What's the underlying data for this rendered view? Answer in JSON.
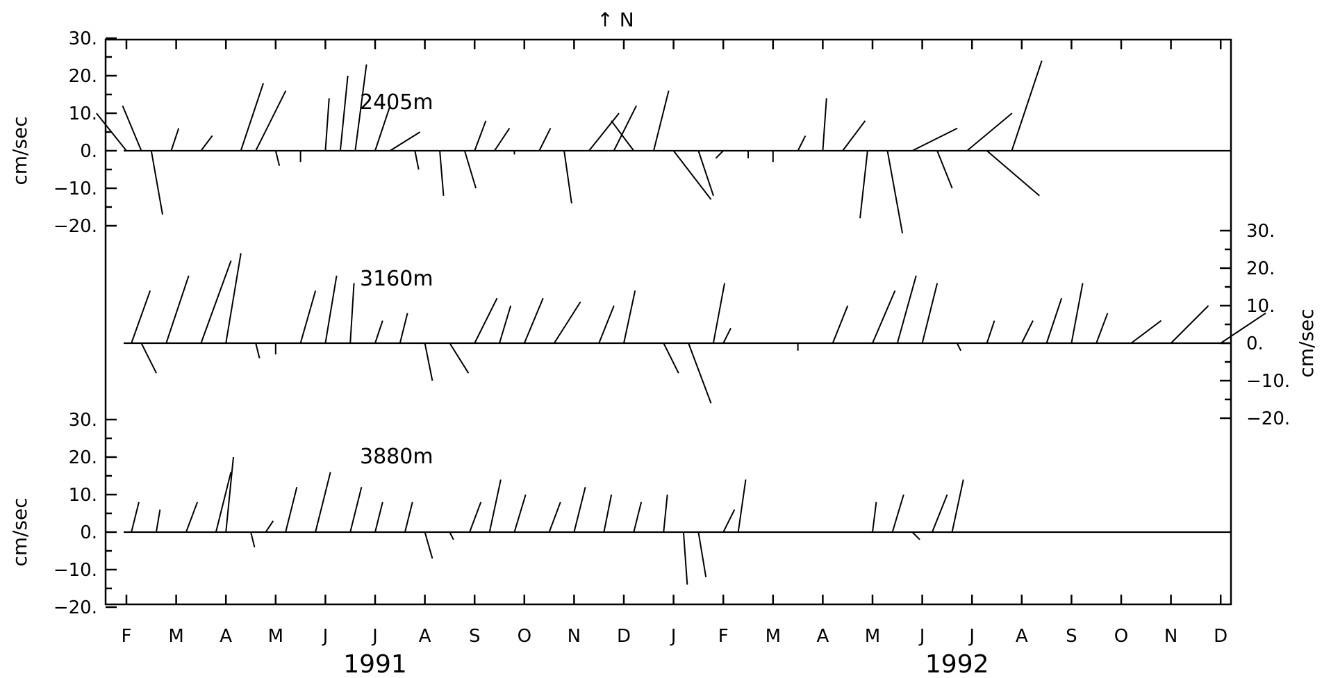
{
  "chart_data": {
    "type": "stick",
    "north_marker": "↑ N",
    "ylabel": "cm/sec",
    "month_labels": [
      "F",
      "M",
      "A",
      "M",
      "J",
      "J",
      "A",
      "S",
      "O",
      "N",
      "D",
      "J",
      "F",
      "M",
      "A",
      "M",
      "J",
      "J",
      "A",
      "S",
      "O",
      "N",
      "D"
    ],
    "year_labels": [
      "1991",
      "1992"
    ],
    "panels": [
      {
        "name": "2405m",
        "depth_label": "2405m",
        "ylim": [
          -30,
          30
        ],
        "y_tick_labels": [
          "30.",
          "20.",
          "10.",
          "0.",
          "−10.",
          "−20."
        ],
        "y_axis_side": "left",
        "coverage_months": [
          0,
          23
        ],
        "sticks": [
          {
            "month": 0.0,
            "u": -8,
            "v": 10
          },
          {
            "month": 0.3,
            "u": -5,
            "v": 12
          },
          {
            "month": 0.5,
            "u": 3,
            "v": -17
          },
          {
            "month": 0.9,
            "u": 2,
            "v": 6
          },
          {
            "month": 1.5,
            "u": 3,
            "v": 4
          },
          {
            "month": 2.3,
            "u": 6,
            "v": 18
          },
          {
            "month": 2.6,
            "u": 8,
            "v": 16
          },
          {
            "month": 3.0,
            "u": 1,
            "v": -4
          },
          {
            "month": 3.5,
            "u": 0,
            "v": -3
          },
          {
            "month": 4.0,
            "u": 1,
            "v": 14
          },
          {
            "month": 4.3,
            "u": 2,
            "v": 20
          },
          {
            "month": 4.6,
            "u": 3,
            "v": 23
          },
          {
            "month": 5.0,
            "u": 4,
            "v": 12
          },
          {
            "month": 5.3,
            "u": 8,
            "v": 5
          },
          {
            "month": 5.8,
            "u": 1,
            "v": -5
          },
          {
            "month": 6.3,
            "u": 1,
            "v": -12
          },
          {
            "month": 6.8,
            "u": 3,
            "v": -10
          },
          {
            "month": 7.0,
            "u": 3,
            "v": 8
          },
          {
            "month": 7.4,
            "u": 4,
            "v": 6
          },
          {
            "month": 7.8,
            "u": 0,
            "v": -1
          },
          {
            "month": 8.3,
            "u": 3,
            "v": 6
          },
          {
            "month": 8.8,
            "u": 2,
            "v": -14
          },
          {
            "month": 9.3,
            "u": 8,
            "v": 10
          },
          {
            "month": 9.8,
            "u": 6,
            "v": 12
          },
          {
            "month": 10.2,
            "u": -6,
            "v": 8
          },
          {
            "month": 10.6,
            "u": 4,
            "v": 16
          },
          {
            "month": 11.0,
            "u": 10,
            "v": -13
          },
          {
            "month": 11.5,
            "u": 4,
            "v": -12
          },
          {
            "month": 12.0,
            "u": -2,
            "v": -2
          },
          {
            "month": 12.5,
            "u": 0,
            "v": -2
          },
          {
            "month": 13.0,
            "u": 0,
            "v": -3
          },
          {
            "month": 13.5,
            "u": 2,
            "v": 4
          },
          {
            "month": 14.0,
            "u": 1,
            "v": 14
          },
          {
            "month": 14.4,
            "u": 6,
            "v": 8
          },
          {
            "month": 14.9,
            "u": -2,
            "v": -18
          },
          {
            "month": 15.3,
            "u": 4,
            "v": -22
          },
          {
            "month": 15.8,
            "u": 12,
            "v": 6
          },
          {
            "month": 16.3,
            "u": 4,
            "v": -10
          },
          {
            "month": 16.9,
            "u": 12,
            "v": 10
          },
          {
            "month": 17.3,
            "u": 14,
            "v": -12
          },
          {
            "month": 17.8,
            "u": 8,
            "v": 24
          }
        ]
      },
      {
        "name": "3160m",
        "depth_label": "3160m",
        "ylim": [
          -30,
          30
        ],
        "y_tick_labels": [
          "30.",
          "20.",
          "10.",
          "0.",
          "−10.",
          "−20."
        ],
        "y_axis_side": "right",
        "coverage_months": [
          0,
          23
        ],
        "sticks": [
          {
            "month": 0.1,
            "u": 5,
            "v": 14
          },
          {
            "month": 0.3,
            "u": 4,
            "v": -8
          },
          {
            "month": 0.8,
            "u": 6,
            "v": 18
          },
          {
            "month": 1.5,
            "u": 8,
            "v": 22
          },
          {
            "month": 2.0,
            "u": 4,
            "v": 24
          },
          {
            "month": 2.6,
            "u": 1,
            "v": -4
          },
          {
            "month": 3.0,
            "u": 0,
            "v": -3
          },
          {
            "month": 3.5,
            "u": 4,
            "v": 14
          },
          {
            "month": 4.0,
            "u": 3,
            "v": 18
          },
          {
            "month": 4.5,
            "u": 1,
            "v": 16
          },
          {
            "month": 5.0,
            "u": 2,
            "v": 6
          },
          {
            "month": 5.5,
            "u": 2,
            "v": 8
          },
          {
            "month": 6.0,
            "u": 2,
            "v": -10
          },
          {
            "month": 6.5,
            "u": 5,
            "v": -8
          },
          {
            "month": 7.0,
            "u": 6,
            "v": 12
          },
          {
            "month": 7.5,
            "u": 3,
            "v": 10
          },
          {
            "month": 8.0,
            "u": 5,
            "v": 12
          },
          {
            "month": 8.6,
            "u": 7,
            "v": 11
          },
          {
            "month": 9.5,
            "u": 4,
            "v": 10
          },
          {
            "month": 10.0,
            "u": 3,
            "v": 14
          },
          {
            "month": 10.8,
            "u": 4,
            "v": -8
          },
          {
            "month": 11.3,
            "u": 6,
            "v": -16
          },
          {
            "month": 11.8,
            "u": 3,
            "v": 16
          },
          {
            "month": 12.0,
            "u": 2,
            "v": 4
          },
          {
            "month": 13.5,
            "u": 0,
            "v": -2
          },
          {
            "month": 14.2,
            "u": 4,
            "v": 10
          },
          {
            "month": 15.0,
            "u": 6,
            "v": 14
          },
          {
            "month": 15.5,
            "u": 5,
            "v": 18
          },
          {
            "month": 16.0,
            "u": 4,
            "v": 16
          },
          {
            "month": 16.7,
            "u": 1,
            "v": -2
          },
          {
            "month": 17.3,
            "u": 2,
            "v": 6
          },
          {
            "month": 18.0,
            "u": 3,
            "v": 6
          },
          {
            "month": 18.5,
            "u": 4,
            "v": 12
          },
          {
            "month": 19.0,
            "u": 3,
            "v": 16
          },
          {
            "month": 19.5,
            "u": 3,
            "v": 8
          },
          {
            "month": 20.2,
            "u": 8,
            "v": 6
          },
          {
            "month": 21.0,
            "u": 10,
            "v": 10
          },
          {
            "month": 22.0,
            "u": 12,
            "v": 8
          }
        ]
      },
      {
        "name": "3880m",
        "depth_label": "3880m",
        "ylim": [
          -20,
          30
        ],
        "y_tick_labels": [
          "30.",
          "20.",
          "10.",
          "0.",
          "−10.",
          "−20."
        ],
        "y_axis_side": "left",
        "coverage_months": [
          0,
          16.8
        ],
        "sticks": [
          {
            "month": 0.1,
            "u": 2,
            "v": 8
          },
          {
            "month": 0.6,
            "u": 1,
            "v": 6
          },
          {
            "month": 1.2,
            "u": 3,
            "v": 8
          },
          {
            "month": 1.8,
            "u": 4,
            "v": 16
          },
          {
            "month": 2.0,
            "u": 2,
            "v": 20
          },
          {
            "month": 2.5,
            "u": 1,
            "v": -4
          },
          {
            "month": 2.8,
            "u": 2,
            "v": 3
          },
          {
            "month": 3.2,
            "u": 3,
            "v": 12
          },
          {
            "month": 3.8,
            "u": 4,
            "v": 16
          },
          {
            "month": 4.5,
            "u": 3,
            "v": 12
          },
          {
            "month": 5.0,
            "u": 2,
            "v": 8
          },
          {
            "month": 5.6,
            "u": 2,
            "v": 8
          },
          {
            "month": 6.0,
            "u": 2,
            "v": -7
          },
          {
            "month": 6.5,
            "u": 1,
            "v": -2
          },
          {
            "month": 6.9,
            "u": 3,
            "v": 8
          },
          {
            "month": 7.3,
            "u": 3,
            "v": 14
          },
          {
            "month": 7.8,
            "u": 3,
            "v": 10
          },
          {
            "month": 8.5,
            "u": 3,
            "v": 8
          },
          {
            "month": 9.0,
            "u": 3,
            "v": 12
          },
          {
            "month": 9.6,
            "u": 2,
            "v": 10
          },
          {
            "month": 10.2,
            "u": 2,
            "v": 8
          },
          {
            "month": 10.8,
            "u": 1,
            "v": 10
          },
          {
            "month": 11.2,
            "u": 1,
            "v": -14
          },
          {
            "month": 11.5,
            "u": 2,
            "v": -12
          },
          {
            "month": 12.0,
            "u": 3,
            "v": 6
          },
          {
            "month": 12.3,
            "u": 2,
            "v": 14
          },
          {
            "month": 15.0,
            "u": 1,
            "v": 8
          },
          {
            "month": 15.4,
            "u": 3,
            "v": 10
          },
          {
            "month": 15.8,
            "u": 2,
            "v": -2
          },
          {
            "month": 16.2,
            "u": 4,
            "v": 10
          },
          {
            "month": 16.6,
            "u": 3,
            "v": 14
          }
        ]
      }
    ]
  }
}
